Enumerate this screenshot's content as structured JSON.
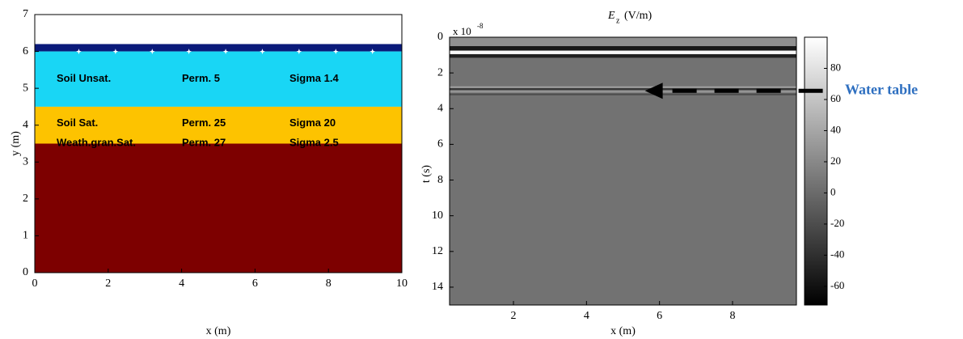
{
  "chart_data": [
    {
      "type": "layers",
      "xlabel": "x (m)",
      "ylabel": "y (m)",
      "xlim": [
        0,
        10
      ],
      "ylim": [
        0,
        7
      ],
      "xticks": [
        0,
        2,
        4,
        6,
        8,
        10
      ],
      "yticks": [
        0,
        1,
        2,
        3,
        4,
        5,
        6,
        7
      ],
      "layers": [
        {
          "bottom": 6,
          "top": 6.2,
          "color": "#0a1a7a"
        },
        {
          "bottom": 4.5,
          "top": 6,
          "color": "#19d6f5",
          "labels": [
            "Soil Unsat.",
            "Perm. 5",
            "Sigma 1.4"
          ]
        },
        {
          "bottom": 3.5,
          "top": 4.5,
          "color": "#fdc300",
          "labels": [
            "Soil Sat.",
            "Perm. 25",
            "Sigma 20"
          ]
        },
        {
          "bottom": 0,
          "top": 3.5,
          "color": "#7d0000",
          "labels": [
            "Weath.gran.Sat.",
            "Perm. 27",
            "Sigma 2.5"
          ]
        }
      ],
      "markers": {
        "x": [
          1.2,
          2.2,
          3.2,
          4.2,
          5.2,
          6.2,
          7.2,
          8.2,
          9.2
        ],
        "y": 6,
        "color": "#ffffff"
      }
    },
    {
      "type": "image",
      "title": {
        "symbol": "E",
        "subscript": "z",
        "unit": "(V/m)"
      },
      "xlabel": "x (m)",
      "ylabel": "t (s)",
      "y_scale": {
        "base": "x 10",
        "exponent": "-8"
      },
      "xlim": [
        0.25,
        9.75
      ],
      "ylim": [
        0,
        15
      ],
      "xticks": [
        2,
        4,
        6,
        8
      ],
      "yticks": [
        0,
        2,
        4,
        6,
        8,
        10,
        12,
        14
      ],
      "background": 5,
      "bands": [
        {
          "t_start": 0,
          "t_end": 0.5,
          "value": 25
        },
        {
          "t_start": 0.5,
          "t_end": 0.75,
          "value": -55
        },
        {
          "t_start": 0.75,
          "t_end": 0.95,
          "value": 95
        },
        {
          "t_start": 0.95,
          "t_end": 1.15,
          "value": -50
        },
        {
          "t_start": 2.75,
          "t_end": 2.85,
          "value": 35
        },
        {
          "t_start": 2.85,
          "t_end": 2.95,
          "value": -35
        },
        {
          "t_start": 3.0,
          "t_end": 3.1,
          "value": 30
        },
        {
          "t_start": 3.15,
          "t_end": 3.25,
          "value": -20
        }
      ],
      "clim": [
        -72,
        100
      ],
      "cticks": [
        -60,
        -40,
        -20,
        0,
        20,
        40,
        60,
        80
      ],
      "annotation": {
        "text": "Water table",
        "t": 3,
        "x_from": 9.75,
        "x_to": 5.6
      }
    }
  ]
}
